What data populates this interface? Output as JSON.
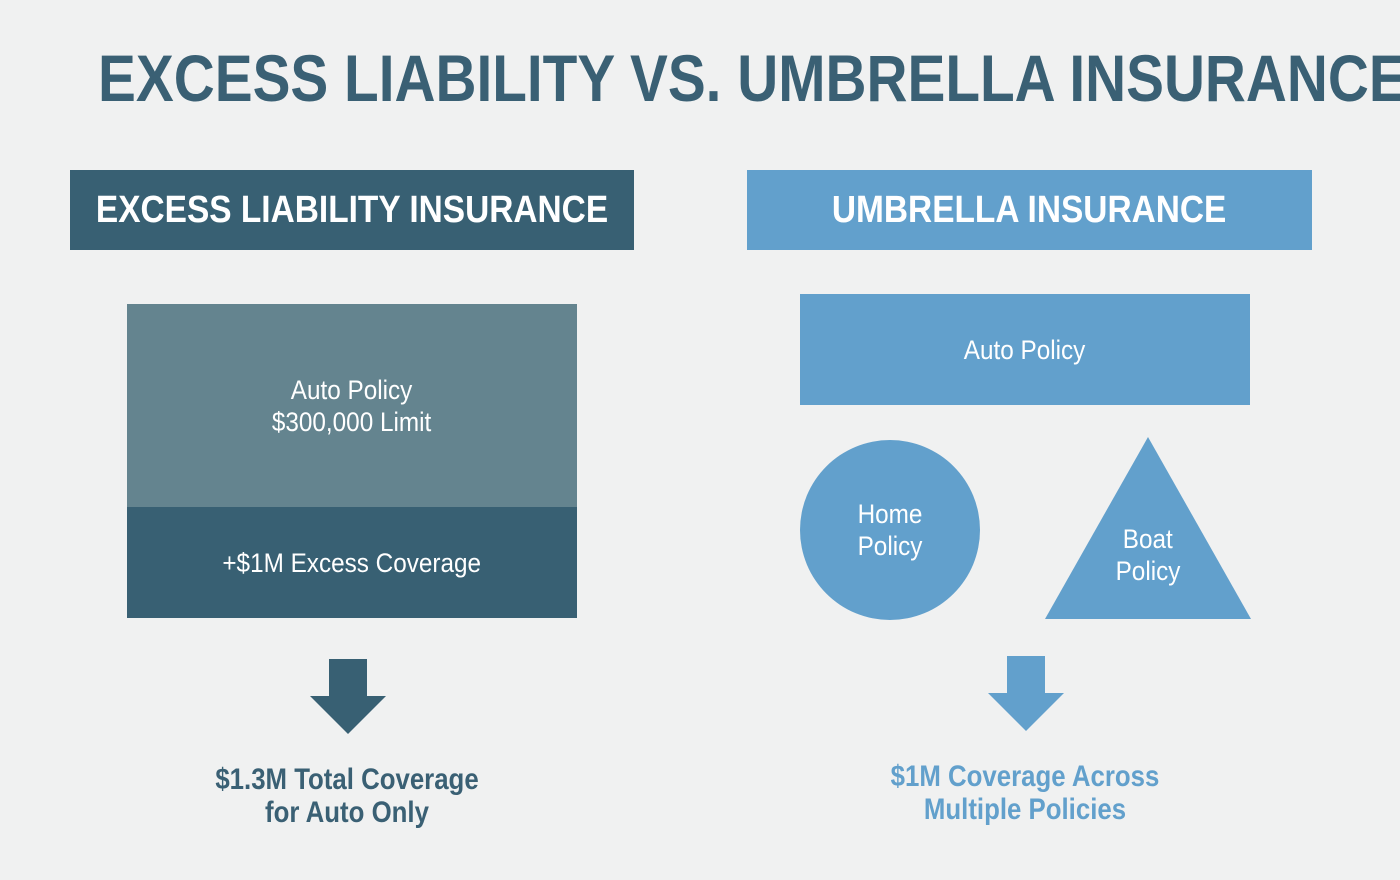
{
  "title": "EXCESS LIABILITY VS. UMBRELLA INSURANCE",
  "colors": {
    "background": "#f0f1f1",
    "dark_blue": "#386073",
    "slate": "#64848f",
    "light_blue": "#62a0cc",
    "text_white": "#ffffff"
  },
  "excess": {
    "header": "EXCESS LIABILITY INSURANCE",
    "auto_policy_line1": "Auto Policy",
    "auto_policy_line2": "$300,000 Limit",
    "excess_coverage": "+$1M Excess Coverage",
    "arrow_icon": "down-arrow-icon",
    "result_line1": "$1.3M Total Coverage",
    "result_line2": "for Auto Only"
  },
  "umbrella": {
    "header": "UMBRELLA INSURANCE",
    "auto_policy": "Auto Policy",
    "home_policy_line1": "Home",
    "home_policy_line2": "Policy",
    "boat_policy_line1": "Boat",
    "boat_policy_line2": "Policy",
    "arrow_icon": "down-arrow-icon",
    "result_line1": "$1M Coverage Across",
    "result_line2": "Multiple Policies"
  }
}
